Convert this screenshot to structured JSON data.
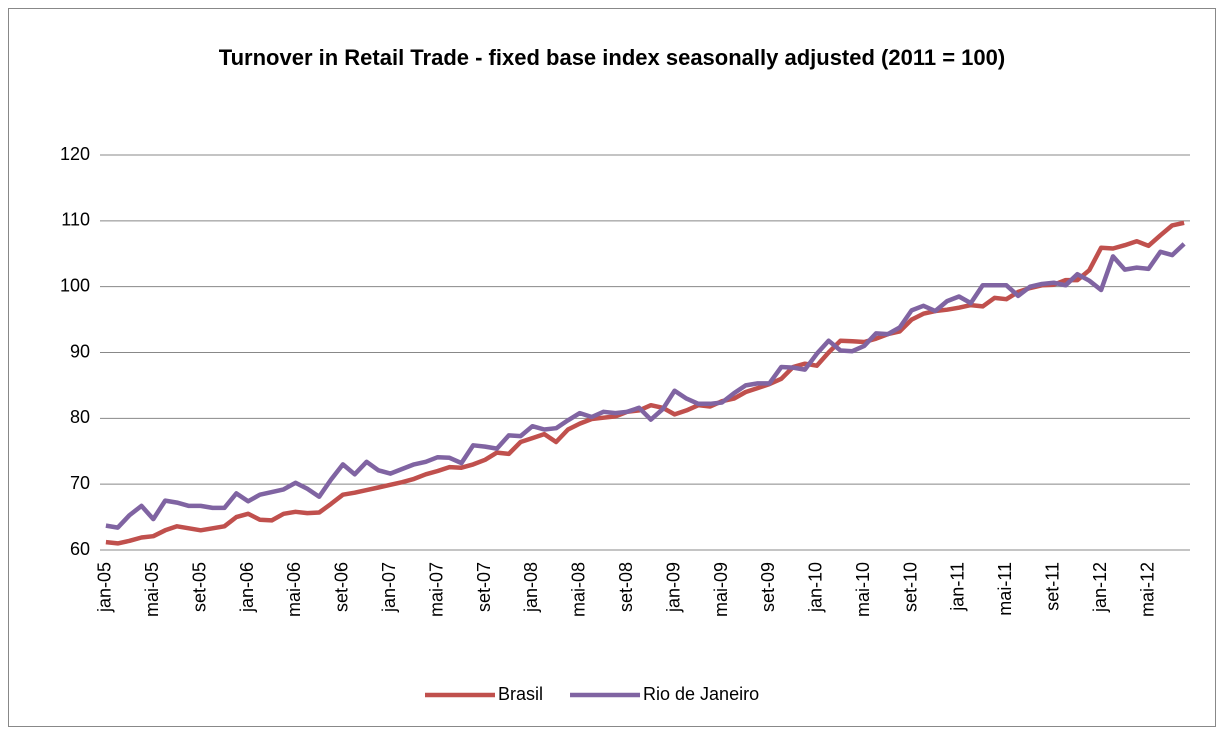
{
  "chart_data": {
    "type": "line",
    "title": "Turnover in Retail Trade - fixed base index seasonally adjusted (2011 = 100)",
    "categories": [
      "jan-05",
      null,
      null,
      null,
      "mai-05",
      null,
      null,
      null,
      "set-05",
      null,
      null,
      null,
      "jan-06",
      null,
      null,
      null,
      "mai-06",
      null,
      null,
      null,
      "set-06",
      null,
      null,
      null,
      "jan-07",
      null,
      null,
      null,
      "mai-07",
      null,
      null,
      null,
      "set-07",
      null,
      null,
      null,
      "jan-08",
      null,
      null,
      null,
      "mai-08",
      null,
      null,
      null,
      "set-08",
      null,
      null,
      null,
      "jan-09",
      null,
      null,
      null,
      "mai-09",
      null,
      null,
      null,
      "set-09",
      null,
      null,
      null,
      "jan-10",
      null,
      null,
      null,
      "mai-10",
      null,
      null,
      null,
      "set-10",
      null,
      null,
      null,
      "jan-11",
      null,
      null,
      null,
      "mai-11",
      null,
      null,
      null,
      "set-11",
      null,
      null,
      null,
      "jan-12",
      null,
      null,
      null,
      "mai-12",
      null,
      null,
      null
    ],
    "series": [
      {
        "name": "Brasil",
        "color": "#c0504d",
        "values": [
          61.2,
          61.0,
          61.4,
          61.9,
          62.1,
          63.0,
          63.6,
          63.3,
          63.0,
          63.3,
          63.6,
          65.0,
          65.5,
          64.6,
          64.5,
          65.5,
          65.8,
          65.6,
          65.7,
          67.0,
          68.4,
          68.7,
          69.1,
          69.5,
          69.9,
          70.3,
          70.8,
          71.5,
          72.0,
          72.6,
          72.5,
          73.0,
          73.7,
          74.8,
          74.6,
          76.4,
          77.0,
          77.6,
          76.4,
          78.3,
          79.2,
          79.9,
          80.1,
          80.3,
          81.0,
          81.2,
          82.0,
          81.6,
          80.6,
          81.2,
          82.0,
          81.8,
          82.6,
          83.0,
          84.0,
          84.6,
          85.2,
          86.0,
          87.8,
          88.3,
          88.0,
          90.0,
          91.8,
          91.7,
          91.6,
          92.1,
          92.8,
          93.2,
          95.0,
          95.9,
          96.3,
          96.5,
          96.8,
          97.2,
          97.0,
          98.3,
          98.1,
          99.2,
          99.8,
          100.2,
          100.3,
          101.0,
          101.0,
          102.5,
          105.9,
          105.8,
          106.3,
          106.9,
          106.2,
          107.8,
          109.3,
          109.7
        ]
      },
      {
        "name": "Rio de Janeiro",
        "color": "#8064a2",
        "values": [
          63.7,
          63.4,
          65.3,
          66.7,
          64.7,
          67.5,
          67.2,
          66.7,
          66.7,
          66.4,
          66.4,
          68.6,
          67.4,
          68.4,
          68.8,
          69.2,
          70.2,
          69.3,
          68.1,
          70.7,
          73.0,
          71.5,
          73.4,
          72.1,
          71.6,
          72.3,
          73.0,
          73.4,
          74.1,
          74.0,
          73.2,
          75.9,
          75.7,
          75.4,
          77.4,
          77.3,
          78.8,
          78.3,
          78.5,
          79.7,
          80.8,
          80.2,
          81.0,
          80.8,
          81.0,
          81.6,
          79.8,
          81.4,
          84.2,
          83.0,
          82.2,
          82.2,
          82.4,
          83.8,
          85.0,
          85.3,
          85.3,
          87.8,
          87.7,
          87.4,
          89.8,
          91.8,
          90.3,
          90.2,
          91.0,
          92.9,
          92.8,
          93.8,
          96.4,
          97.1,
          96.3,
          97.8,
          98.5,
          97.5,
          100.2,
          100.2,
          100.2,
          98.6,
          100.0,
          100.4,
          100.6,
          100.2,
          101.9,
          100.9,
          99.5,
          104.6,
          102.6,
          102.9,
          102.7,
          105.3,
          104.8,
          106.5
        ]
      }
    ],
    "ylim": [
      60,
      120
    ],
    "yticks": [
      60,
      70,
      80,
      90,
      100,
      110,
      120
    ],
    "grid": true,
    "legend": "bottom"
  }
}
